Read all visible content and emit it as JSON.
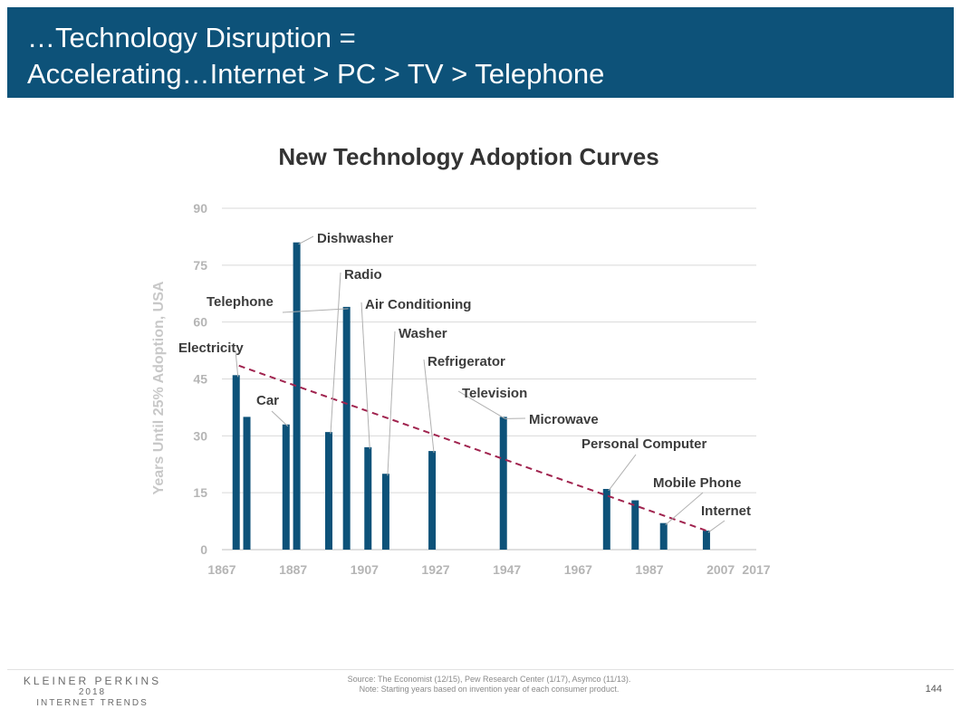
{
  "header": {
    "line1": "…Technology Disruption =",
    "line2": "Accelerating…Internet > PC > TV > Telephone"
  },
  "colors": {
    "header_bg": "#0d5279",
    "bar": "#0d5279",
    "trend": "#a0234e",
    "gridline": "#d9d9d9",
    "axis_text": "#b5b5b5",
    "label_text": "#3c3c3c"
  },
  "chart_data": {
    "type": "bar",
    "title": "New Technology Adoption Curves",
    "xlabel": "",
    "ylabel": "Years Until 25% Adoption, USA",
    "xlim": [
      1867,
      2017
    ],
    "ylim": [
      0,
      90
    ],
    "y_ticks": [
      "0",
      "15",
      "30",
      "45",
      "60",
      "75",
      "90"
    ],
    "x_ticks": [
      "1867",
      "1887",
      "1907",
      "1927",
      "1947",
      "1967",
      "1987",
      "2007",
      "2017"
    ],
    "grid": true,
    "series": [
      {
        "points": [
          {
            "label": "Electricity",
            "year": 1871,
            "value": 46
          },
          {
            "label": "",
            "year": 1874,
            "value": 35
          },
          {
            "label": "Car",
            "year": 1885,
            "value": 33
          },
          {
            "label": "Dishwasher",
            "year": 1888,
            "value": 81
          },
          {
            "label": "Radio",
            "year": 1897,
            "value": 31
          },
          {
            "label": "Telephone",
            "year": 1902,
            "value": 64
          },
          {
            "label": "Air Conditioning",
            "year": 1908,
            "value": 27
          },
          {
            "label": "Washer",
            "year": 1913,
            "value": 20
          },
          {
            "label": "Refrigerator",
            "year": 1926,
            "value": 26
          },
          {
            "label": "Television",
            "year": 1946,
            "value": 35
          },
          {
            "label": "Microwave",
            "year": 1946,
            "value": 35
          },
          {
            "label": "Personal Computer",
            "year": 1975,
            "value": 16
          },
          {
            "label": "",
            "year": 1983,
            "value": 13
          },
          {
            "label": "Mobile Phone",
            "year": 1991,
            "value": 7
          },
          {
            "label": "Internet",
            "year": 2003,
            "value": 5
          }
        ]
      }
    ],
    "trendline": {
      "start": [
        1871,
        48.5
      ],
      "end": [
        2003,
        5
      ]
    }
  },
  "footer": {
    "brand": "KLEINER PERKINS",
    "year": "2018",
    "sub": "INTERNET TRENDS",
    "source_line1": "Source: The Economist (12/15), Pew Research Center (1/17), Asymco (11/13).",
    "source_line2": "Note: Starting years based on invention year of each consumer product.",
    "page": "144"
  }
}
